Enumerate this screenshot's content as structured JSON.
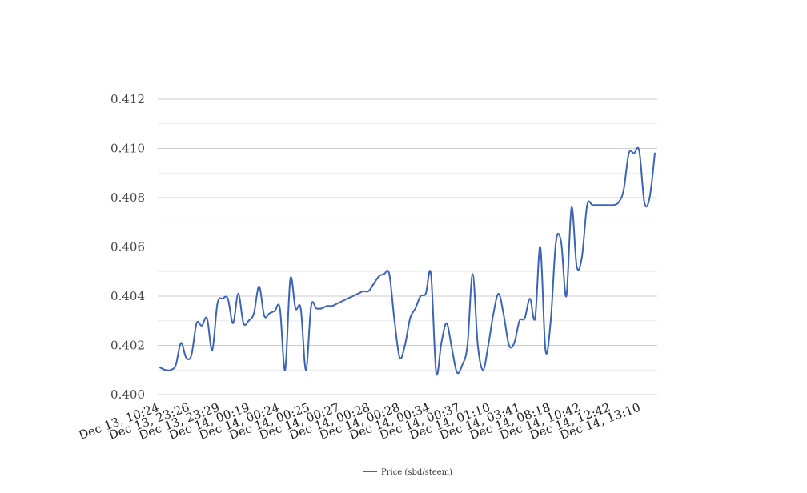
{
  "colors": {
    "series": "#3c64b4",
    "major_grid": "#cccccc",
    "minor_grid": "#ececec",
    "background": "#ffffff"
  },
  "chart_data": {
    "type": "line",
    "title": "",
    "xlabel": "",
    "ylabel": "",
    "ylim": [
      0.4,
      0.412
    ],
    "y_ticks": [
      "0.400",
      "0.402",
      "0.404",
      "0.406",
      "0.408",
      "0.410",
      "0.412"
    ],
    "y_tick_values": [
      0.4,
      0.402,
      0.404,
      0.406,
      0.408,
      0.41,
      0.412
    ],
    "minor_grid": true,
    "grid": true,
    "legend_position": "bottom-center",
    "x_tick_labels": [
      "Dec 13, 10:24",
      "Dec 13, 23:26",
      "Dec 13, 23:29",
      "Dec 14, 00:19",
      "Dec 14, 00:24",
      "Dec 14, 00:25",
      "Dec 14, 00:27",
      "Dec 14, 00:28",
      "Dec 14, 00:28",
      "Dec 14, 00:34",
      "Dec 14, 00:37",
      "Dec 14, 01:10",
      "Dec 14, 03:41",
      "Dec 14, 08:18",
      "Dec 14, 10:42",
      "Dec 14, 12:42",
      "Dec 14, 13:10"
    ],
    "series": [
      {
        "name": "Price (sbd/steem)",
        "values": [
          0.4011,
          0.401,
          0.401,
          0.4012,
          0.4021,
          0.4015,
          0.4016,
          0.4029,
          0.4028,
          0.4031,
          0.4018,
          0.4037,
          0.4039,
          0.4039,
          0.4029,
          0.4041,
          0.4029,
          0.403,
          0.4033,
          0.4044,
          0.4032,
          0.4033,
          0.4034,
          0.4035,
          0.401,
          0.4047,
          0.4035,
          0.4035,
          0.401,
          0.4036,
          0.4035,
          0.4035,
          0.4036,
          0.4036,
          0.4037,
          0.4038,
          0.4039,
          0.404,
          0.4041,
          0.4042,
          0.4042,
          0.4045,
          0.4048,
          0.4049,
          0.4049,
          0.403,
          0.4015,
          0.402,
          0.4031,
          0.4035,
          0.404,
          0.4041,
          0.4049,
          0.4009,
          0.4021,
          0.4029,
          0.4019,
          0.4009,
          0.4012,
          0.402,
          0.4049,
          0.402,
          0.401,
          0.402,
          0.4033,
          0.4041,
          0.4032,
          0.402,
          0.4021,
          0.403,
          0.4031,
          0.4039,
          0.4031,
          0.406,
          0.4018,
          0.403,
          0.4062,
          0.4062,
          0.404,
          0.4076,
          0.4052,
          0.4056,
          0.4077,
          0.4077,
          0.4077,
          0.4077,
          0.4077,
          0.4077,
          0.4078,
          0.4083,
          0.4098,
          0.4098,
          0.4099,
          0.4078,
          0.408,
          0.4098
        ]
      }
    ]
  }
}
